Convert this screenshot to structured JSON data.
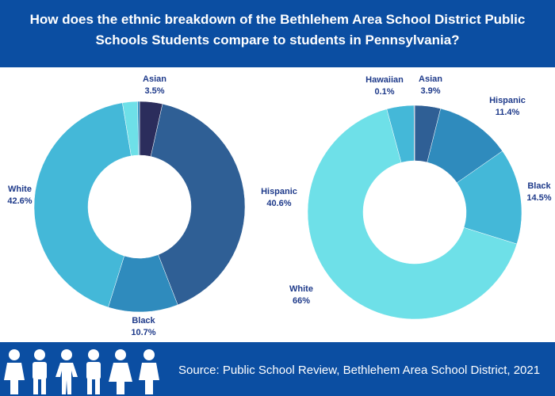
{
  "title": "How does the ethnic breakdown of the Bethlehem Area School District Public Schools Students compare to students in Pennsylvania?",
  "source": "Source: Public School Review, Bethlehem Area School District, 2021",
  "chart_data": [
    {
      "type": "donut",
      "categories": [
        "Asian",
        "Hispanic",
        "Black",
        "White",
        null,
        null
      ],
      "values": [
        3.5,
        40.6,
        10.7,
        42.6,
        2.3,
        0.3
      ],
      "value_labels": [
        "3.5%",
        "40.6%",
        "10.7%",
        "42.6%",
        null,
        null
      ],
      "colors": [
        "#2b2d5c",
        "#2f5f95",
        "#2f8bbd",
        "#44b8d8",
        "#6ee0e8",
        "#2f8bbd"
      ]
    },
    {
      "type": "donut",
      "categories": [
        "Asian",
        "Hispanic",
        "Black",
        "White",
        null,
        "Hawaiian"
      ],
      "values": [
        3.9,
        11.4,
        14.5,
        66,
        4.1,
        0.1
      ],
      "value_labels": [
        "3.9%",
        "11.4%",
        "14.5%",
        "66%",
        null,
        "0.1%"
      ],
      "colors": [
        "#2f5f95",
        "#2f8bbd",
        "#44b8d8",
        "#6ee0e8",
        "#44b8d8",
        "#2f5f95"
      ]
    }
  ]
}
